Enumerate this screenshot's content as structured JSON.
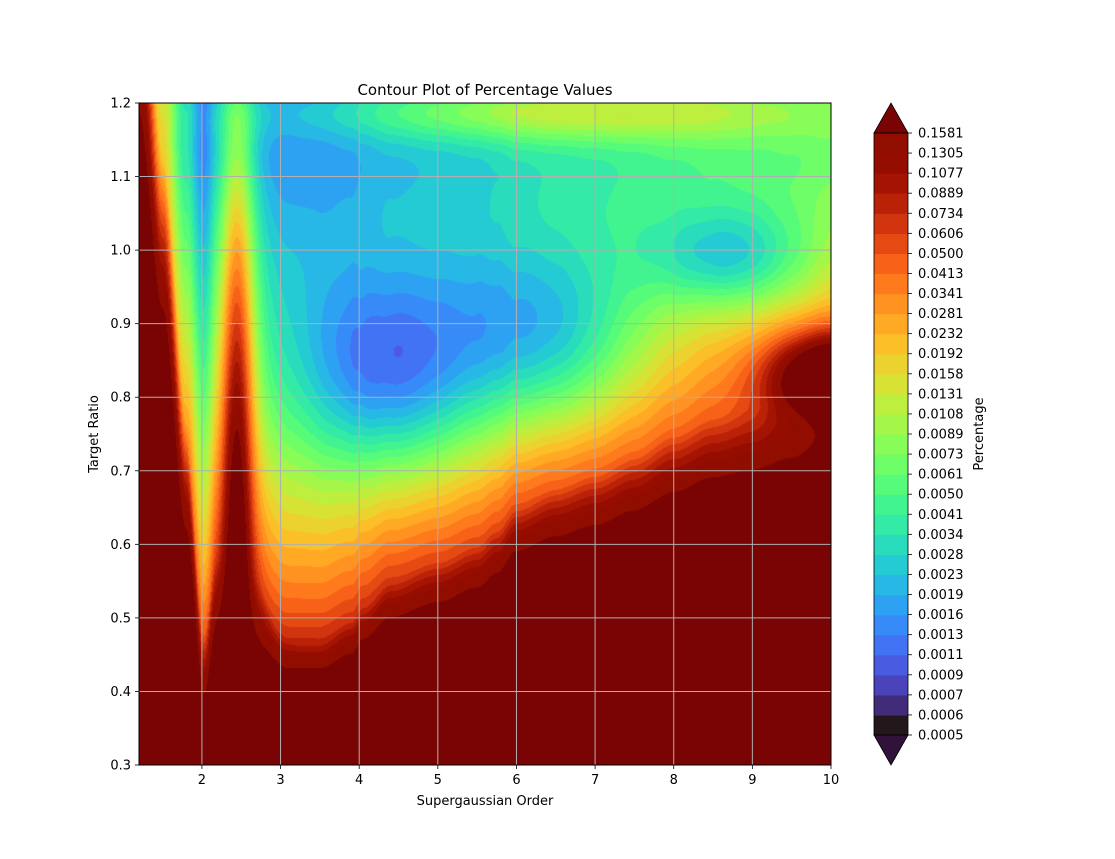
{
  "chart_data": {
    "type": "contour",
    "title": "Contour Plot of Percentage Values",
    "xlabel": "Supergaussian Order",
    "ylabel": "Target Ratio",
    "colorbar_label": "Percentage",
    "xlim": [
      1.2,
      10
    ],
    "ylim": [
      0.3,
      1.2
    ],
    "xticks": [
      2,
      3,
      4,
      5,
      6,
      7,
      8,
      9,
      10
    ],
    "xtick_labels": [
      "2",
      "3",
      "4",
      "5",
      "6",
      "7",
      "8",
      "9",
      "10"
    ],
    "yticks": [
      0.3,
      0.4,
      0.5,
      0.6,
      0.7,
      0.8,
      0.9,
      1.0,
      1.1,
      1.2
    ],
    "ytick_labels": [
      "0.3",
      "0.4",
      "0.5",
      "0.6",
      "0.7",
      "0.8",
      "0.9",
      "1.0",
      "1.1",
      "1.2"
    ],
    "grid": true,
    "colorbar_extend": "both",
    "colorbar_scale": "log",
    "levels": [
      0.0005,
      0.0006,
      0.0007,
      0.0009,
      0.0011,
      0.0013,
      0.0016,
      0.0019,
      0.0023,
      0.0028,
      0.0034,
      0.0041,
      0.005,
      0.0061,
      0.0073,
      0.0089,
      0.0108,
      0.0131,
      0.0158,
      0.0192,
      0.0232,
      0.0281,
      0.0341,
      0.0413,
      0.05,
      0.0606,
      0.0734,
      0.0889,
      0.1077,
      0.1305,
      0.1581
    ],
    "level_labels": [
      "0.0005",
      "0.0006",
      "0.0007",
      "0.0009",
      "0.0011",
      "0.0013",
      "0.0016",
      "0.0019",
      "0.0023",
      "0.0028",
      "0.0034",
      "0.0041",
      "0.0050",
      "0.0061",
      "0.0073",
      "0.0089",
      "0.0108",
      "0.0131",
      "0.0158",
      "0.0192",
      "0.0232",
      "0.0281",
      "0.0341",
      "0.0413",
      "0.0500",
      "0.0606",
      "0.0734",
      "0.0889",
      "0.1077",
      "0.1305",
      "0.1581"
    ],
    "colormap": "turbo",
    "under_color": "#30123b",
    "over_color": "#7a0403"
  }
}
